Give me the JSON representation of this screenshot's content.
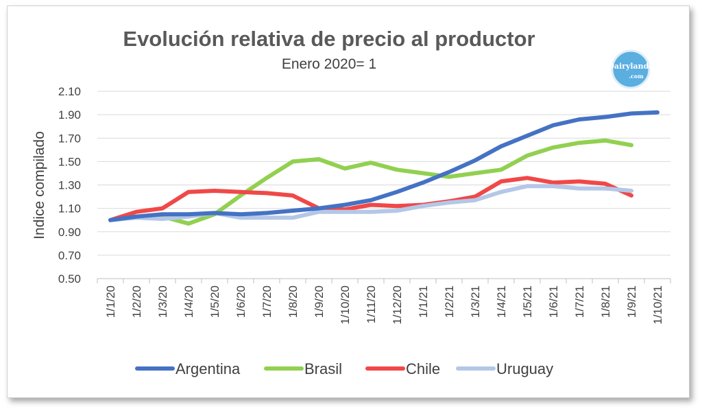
{
  "chart_data": {
    "type": "line",
    "title": "Evolución relativa de precio al productor",
    "subtitle": "Enero 2020= 1",
    "ylabel": "Indice compilado",
    "xlabel": "",
    "ylim": [
      0.5,
      2.1
    ],
    "yticks": [
      "0.50",
      "0.70",
      "0.90",
      "1.10",
      "1.30",
      "1.50",
      "1.70",
      "1.90",
      "2.10"
    ],
    "grid": true,
    "legend_position": "bottom",
    "categories": [
      "1/1/20",
      "1/2/20",
      "1/3/20",
      "1/4/20",
      "1/5/20",
      "1/6/20",
      "1/7/20",
      "1/8/20",
      "1/9/20",
      "1/10/20",
      "1/11/20",
      "1/12/20",
      "1/1/21",
      "1/2/21",
      "1/3/21",
      "1/4/21",
      "1/5/21",
      "1/6/21",
      "1/7/21",
      "1/8/21",
      "1/9/21",
      "1/10/21"
    ],
    "series": [
      {
        "name": "Argentina",
        "color": "#4472c4",
        "values": [
          1.0,
          1.03,
          1.05,
          1.05,
          1.06,
          1.05,
          1.06,
          1.08,
          1.1,
          1.13,
          1.17,
          1.24,
          1.32,
          1.41,
          1.51,
          1.63,
          1.72,
          1.81,
          1.86,
          1.88,
          1.91,
          1.92
        ]
      },
      {
        "name": "Brasil",
        "color": "#92d050",
        "values": [
          1.0,
          1.03,
          1.03,
          0.97,
          1.05,
          1.21,
          1.36,
          1.5,
          1.52,
          1.44,
          1.49,
          1.43,
          1.4,
          1.37,
          1.4,
          1.43,
          1.55,
          1.62,
          1.66,
          1.68,
          1.64,
          null
        ]
      },
      {
        "name": "Chile",
        "color": "#f04848",
        "values": [
          1.0,
          1.07,
          1.1,
          1.24,
          1.25,
          1.24,
          1.23,
          1.21,
          1.1,
          1.09,
          1.13,
          1.12,
          1.13,
          1.16,
          1.2,
          1.33,
          1.36,
          1.32,
          1.33,
          1.31,
          1.21,
          null
        ]
      },
      {
        "name": "Uruguay",
        "color": "#b4c7e7",
        "values": [
          1.0,
          1.02,
          1.01,
          1.03,
          1.06,
          1.02,
          1.02,
          1.02,
          1.07,
          1.07,
          1.07,
          1.08,
          1.12,
          1.15,
          1.17,
          1.24,
          1.29,
          1.29,
          1.27,
          1.27,
          1.25,
          null
        ]
      }
    ]
  },
  "logo": {
    "text_top": "Dairylando",
    "text_bottom": ".com",
    "color": "#5aaee0"
  }
}
